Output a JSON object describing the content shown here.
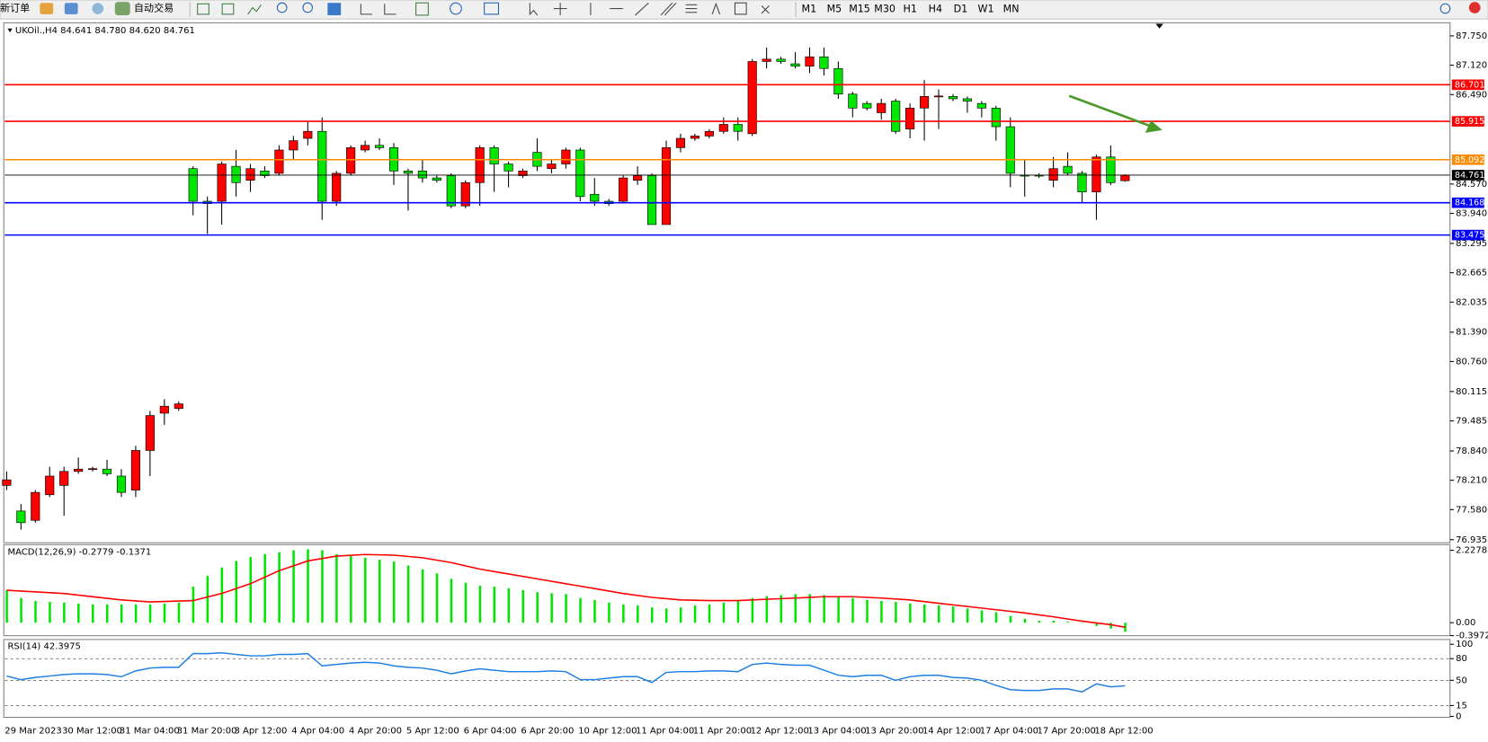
{
  "toolbar": {
    "new_order": "新订单",
    "auto_trading": "自动交易",
    "timeframes": [
      "M1",
      "M5",
      "M15",
      "M30",
      "H1",
      "H4",
      "D1",
      "W1",
      "MN"
    ]
  },
  "chart_data": [
    {
      "type": "candlestick",
      "title": "UKOil.,H4  84.641 84.780 84.620 84.761",
      "categories": [
        "29 Mar 2023",
        null,
        null,
        null,
        "30 Mar 12:00",
        null,
        null,
        null,
        "31 Mar 04:00",
        null,
        null,
        null,
        "31 Mar 20:00",
        null,
        null,
        null,
        "3 Apr 12:00",
        null,
        null,
        null,
        "4 Apr 04:00",
        null,
        null,
        null,
        "4 Apr 20:00",
        null,
        null,
        null,
        "5 Apr 12:00",
        null,
        null,
        null,
        "6 Apr 04:00",
        null,
        null,
        null,
        "6 Apr 20:00",
        null,
        null,
        null,
        "10 Apr 12:00",
        null,
        null,
        null,
        "11 Apr 04:00",
        null,
        null,
        null,
        "11 Apr 20:00",
        null,
        null,
        null,
        "12 Apr 12:00",
        null,
        null,
        null,
        "13 Apr 04:00",
        null,
        null,
        null,
        "13 Apr 20:00",
        null,
        null,
        null,
        "14 Apr 12:00",
        null,
        null,
        null,
        "17 Apr 04:00",
        null,
        null,
        null,
        "17 Apr 20:00",
        null,
        null,
        null,
        "18 Apr 12:00",
        null,
        null
      ],
      "open": [
        78.1,
        77.55,
        77.35,
        77.9,
        78.1,
        78.4,
        78.45,
        78.45,
        78.3,
        78.0,
        78.85,
        79.65,
        79.75,
        84.9,
        84.2,
        84.2,
        84.95,
        84.65,
        84.85,
        84.8,
        85.3,
        85.55,
        85.7,
        84.2,
        84.8,
        85.3,
        85.4,
        85.35,
        84.85,
        84.85,
        84.7,
        84.75,
        84.1,
        84.6,
        85.35,
        85.0,
        84.75,
        85.25,
        84.9,
        85.0,
        85.3,
        84.35,
        84.2,
        84.2,
        84.65,
        84.75,
        83.7,
        85.35,
        85.55,
        85.6,
        85.7,
        85.85,
        85.65,
        87.2,
        87.25,
        87.15,
        87.1,
        87.3,
        87.05,
        86.5,
        86.3,
        86.1,
        86.35,
        85.75,
        86.2,
        86.45,
        86.45,
        86.4,
        86.3,
        86.2,
        85.8,
        84.76,
        84.76,
        84.65,
        84.95,
        84.8,
        84.4,
        85.15,
        84.641
      ],
      "high": [
        78.4,
        77.7,
        78.0,
        78.5,
        78.5,
        78.7,
        78.5,
        78.65,
        78.45,
        78.95,
        79.7,
        79.95,
        79.9,
        84.95,
        84.3,
        85.05,
        85.3,
        85.0,
        84.95,
        85.4,
        85.6,
        85.9,
        86.0,
        84.85,
        85.4,
        85.5,
        85.55,
        85.45,
        84.9,
        85.1,
        84.75,
        84.8,
        84.65,
        85.4,
        85.4,
        85.05,
        84.9,
        85.55,
        85.1,
        85.35,
        85.35,
        84.7,
        84.25,
        84.75,
        84.95,
        84.8,
        85.5,
        85.65,
        85.65,
        85.75,
        86.0,
        86.0,
        87.25,
        87.5,
        87.3,
        87.4,
        87.5,
        87.5,
        87.2,
        86.55,
        86.35,
        86.4,
        86.4,
        86.3,
        86.8,
        86.6,
        86.5,
        86.45,
        86.35,
        86.25,
        86.0,
        85.1,
        84.8,
        85.15,
        85.25,
        84.85,
        85.2,
        85.4,
        84.78
      ],
      "low": [
        78.0,
        77.15,
        77.3,
        77.85,
        77.45,
        78.35,
        78.4,
        78.3,
        77.85,
        77.85,
        78.3,
        79.4,
        79.7,
        83.9,
        83.5,
        83.7,
        84.3,
        84.4,
        84.7,
        84.75,
        85.1,
        85.4,
        83.8,
        84.1,
        84.75,
        85.25,
        85.3,
        84.55,
        84.0,
        84.6,
        84.6,
        84.05,
        84.05,
        84.1,
        84.4,
        84.5,
        84.7,
        84.85,
        84.8,
        84.9,
        84.2,
        84.1,
        84.1,
        84.15,
        84.55,
        83.7,
        83.7,
        85.25,
        85.5,
        85.55,
        85.65,
        85.5,
        85.6,
        87.05,
        87.15,
        87.05,
        86.95,
        86.9,
        86.4,
        86.0,
        86.15,
        85.95,
        85.65,
        85.55,
        85.5,
        85.75,
        86.35,
        86.1,
        86.0,
        85.5,
        84.5,
        84.3,
        84.7,
        84.5,
        84.75,
        84.15,
        83.8,
        84.55,
        84.62
      ],
      "close": [
        78.22,
        77.3,
        77.95,
        78.3,
        78.4,
        78.45,
        78.46,
        78.35,
        77.95,
        78.85,
        79.6,
        79.8,
        79.85,
        84.2,
        84.15,
        85.0,
        84.6,
        84.9,
        84.75,
        85.3,
        85.5,
        85.7,
        84.2,
        84.8,
        85.35,
        85.4,
        85.35,
        84.85,
        84.8,
        84.7,
        84.65,
        84.1,
        84.6,
        85.35,
        85.0,
        84.85,
        84.85,
        84.95,
        85.0,
        85.3,
        84.3,
        84.2,
        84.15,
        84.7,
        84.75,
        83.7,
        85.35,
        85.55,
        85.6,
        85.7,
        85.85,
        85.7,
        87.2,
        87.25,
        87.2,
        87.1,
        87.3,
        87.05,
        86.5,
        86.2,
        86.2,
        86.3,
        85.7,
        86.2,
        86.45,
        86.46,
        86.4,
        86.35,
        86.2,
        85.8,
        84.8,
        84.75,
        84.75,
        84.9,
        84.8,
        84.4,
        85.15,
        84.6,
        84.761
      ],
      "up_color": "#ff0000",
      "down_color": "#00e600",
      "ylim": [
        76.89,
        88.01
      ],
      "yticks": [
        {
          "value": 87.75,
          "label": "87.750"
        },
        {
          "value": 87.12,
          "label": "87.120"
        },
        {
          "value": 86.49,
          "label": "86.490"
        },
        {
          "value": 84.57,
          "label": "84.570"
        },
        {
          "value": 83.94,
          "label": "83.940"
        },
        83.295,
        82.665,
        82.035,
        {
          "value": 81.39,
          "label": "81.390"
        },
        {
          "value": 80.76,
          "label": "80.760"
        },
        80.115,
        79.485,
        {
          "value": 78.84,
          "label": "78.840"
        },
        {
          "value": 78.21,
          "label": "78.210"
        },
        {
          "value": 77.58,
          "label": "77.580"
        },
        76.935
      ],
      "levels": [
        {
          "value": 86.701,
          "color": "#ff0000"
        },
        {
          "value": 85.915,
          "color": "#ff0000"
        },
        {
          "value": 85.092,
          "color": "#ff8c00"
        },
        {
          "value": 84.761,
          "color": "#000000"
        },
        {
          "value": 84.168,
          "color": "#0000ff"
        },
        {
          "value": 83.475,
          "color": "#0000ff"
        }
      ]
    },
    {
      "type": "bar",
      "title": "MACD(12,26,9) -0.2779 -0.1371",
      "color": "#00e600",
      "values": [
        1.0,
        0.76,
        0.67,
        0.64,
        0.62,
        0.59,
        0.56,
        0.56,
        0.56,
        0.56,
        0.56,
        0.59,
        0.62,
        1.11,
        1.44,
        1.7,
        1.9,
        2.02,
        2.11,
        2.17,
        2.23,
        2.26,
        2.23,
        2.11,
        2.05,
        2.0,
        1.94,
        1.88,
        1.76,
        1.64,
        1.52,
        1.35,
        1.23,
        1.14,
        1.11,
        1.06,
        1.0,
        0.94,
        0.91,
        0.88,
        0.76,
        0.7,
        0.62,
        0.56,
        0.53,
        0.47,
        0.44,
        0.47,
        0.53,
        0.56,
        0.62,
        0.67,
        0.76,
        0.82,
        0.85,
        0.88,
        0.88,
        0.85,
        0.82,
        0.76,
        0.7,
        0.67,
        0.64,
        0.59,
        0.56,
        0.53,
        0.5,
        0.44,
        0.38,
        0.32,
        0.21,
        0.12,
        0.06,
        0.06,
        0.03,
        0.01,
        -0.1,
        -0.18,
        -0.2779
      ],
      "signal": {
        "color": "#ff0000",
        "x": [
          0,
          4,
          8,
          10,
          13,
          15,
          17,
          19,
          21,
          23,
          25,
          27,
          29,
          31,
          33,
          35,
          37,
          39,
          41,
          43,
          45,
          47,
          49,
          51,
          53,
          55,
          57,
          59,
          61,
          63,
          65,
          67,
          69,
          71,
          73,
          75,
          77,
          78
        ],
        "values": [
          1.0,
          0.9,
          0.7,
          0.64,
          0.68,
          0.9,
          1.2,
          1.6,
          1.9,
          2.05,
          2.1,
          2.08,
          2.0,
          1.85,
          1.65,
          1.5,
          1.35,
          1.2,
          1.05,
          0.9,
          0.78,
          0.7,
          0.68,
          0.68,
          0.72,
          0.76,
          0.8,
          0.8,
          0.76,
          0.7,
          0.6,
          0.5,
          0.4,
          0.3,
          0.18,
          0.05,
          -0.06,
          -0.1371
        ]
      },
      "ylim": [
        -0.4,
        2.374
      ],
      "yticks": [
        2.2278,
        {
          "value": 0,
          "label": "0.00"
        },
        -0.3972
      ]
    },
    {
      "type": "line",
      "title": "RSI(14) 42.3975",
      "color": "#1e7fe6",
      "values": [
        56,
        51,
        54,
        56,
        58,
        59,
        59,
        58,
        55,
        63,
        67,
        68,
        68,
        87,
        87,
        88,
        86,
        84,
        84,
        86,
        86,
        87,
        70,
        72,
        74,
        75,
        74,
        70,
        68,
        67,
        64,
        59,
        63,
        66,
        64,
        62,
        62,
        62,
        63,
        62,
        51,
        51,
        53,
        55,
        55,
        47,
        61,
        62,
        62,
        63,
        63,
        62,
        72,
        74,
        72,
        71,
        71,
        64,
        57,
        55,
        57,
        57,
        50,
        55,
        57,
        57,
        54,
        53,
        50,
        43,
        37,
        36,
        36,
        38,
        38,
        34,
        45,
        41,
        42.3975
      ],
      "ylim": [
        -1.3,
        105.3
      ],
      "yticks": [
        100,
        80,
        50,
        15,
        0
      ],
      "levels": [
        80,
        50,
        15
      ]
    }
  ]
}
